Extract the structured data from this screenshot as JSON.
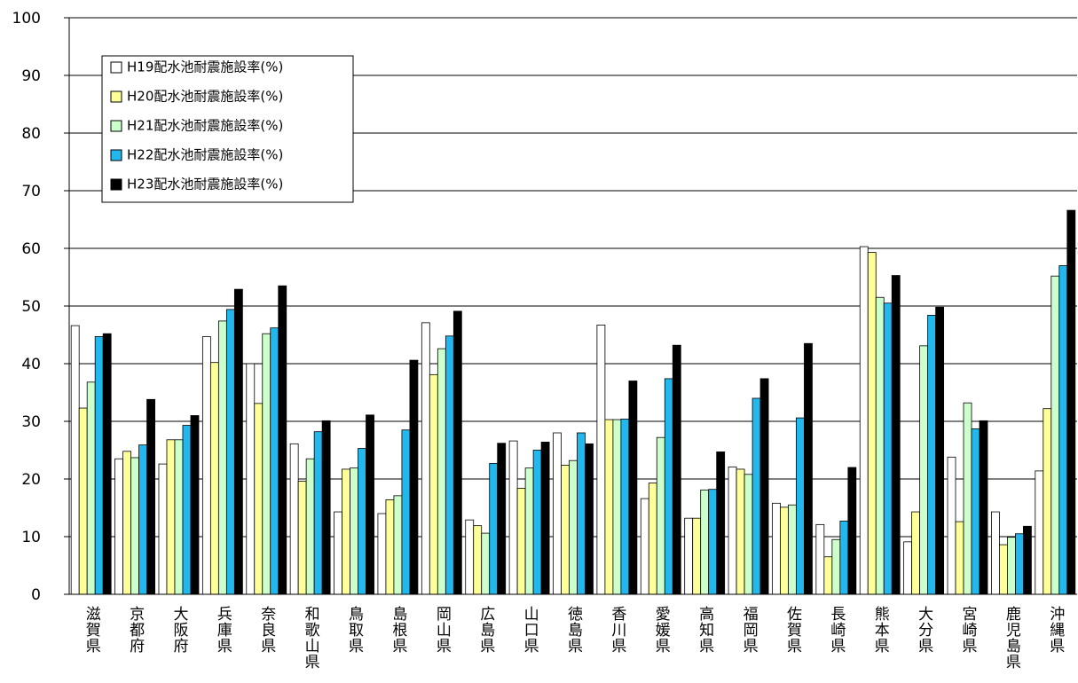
{
  "chart_data": {
    "type": "bar",
    "categories": [
      "滋賀県",
      "京都府",
      "大阪府",
      "兵庫県",
      "奈良県",
      "和歌山県",
      "鳥取県",
      "島根県",
      "岡山県",
      "広島県",
      "山口県",
      "徳島県",
      "香川県",
      "愛媛県",
      "高知県",
      "福岡県",
      "佐賀県",
      "長崎県",
      "熊本県",
      "大分県",
      "宮崎県",
      "鹿児島県",
      "沖縄県"
    ],
    "series": [
      {
        "name": "H19配水池耐震施設率(%)",
        "color": "#ffffff",
        "values": [
          46.6,
          23.5,
          22.6,
          44.7,
          40.0,
          26.1,
          14.3,
          14.0,
          47.1,
          12.9,
          26.6,
          28.0,
          46.7,
          16.6,
          13.2,
          22.1,
          15.8,
          12.1,
          60.3,
          9.1,
          23.8,
          14.3,
          21.4
        ]
      },
      {
        "name": "H20配水池耐震施設率(%)",
        "color": "#ffff99",
        "values": [
          32.3,
          24.8,
          26.8,
          40.2,
          33.1,
          19.6,
          21.7,
          16.4,
          38.1,
          11.9,
          18.4,
          22.4,
          30.3,
          19.3,
          13.2,
          21.7,
          15.1,
          6.5,
          59.3,
          14.3,
          12.6,
          8.6,
          32.2
        ]
      },
      {
        "name": "H21配水池耐震施設率(%)",
        "color": "#ccffcc",
        "values": [
          36.8,
          23.7,
          26.8,
          47.4,
          45.2,
          23.5,
          21.9,
          17.1,
          42.6,
          10.6,
          21.9,
          23.2,
          30.3,
          27.2,
          18.1,
          20.8,
          15.5,
          9.5,
          51.5,
          43.1,
          33.2,
          9.9,
          55.2
        ]
      },
      {
        "name": "H22配水池耐震施設率(%)",
        "color": "#22b8ee",
        "values": [
          44.7,
          25.9,
          29.3,
          49.4,
          46.2,
          28.2,
          25.3,
          28.5,
          44.8,
          22.7,
          25.0,
          28.0,
          30.4,
          37.4,
          18.2,
          34.0,
          30.6,
          12.7,
          50.5,
          48.4,
          28.7,
          10.5,
          57.0
        ]
      },
      {
        "name": "H23配水池耐震施設率(%)",
        "color": "#000000",
        "values": [
          45.2,
          33.8,
          31.0,
          52.9,
          53.5,
          30.1,
          31.1,
          40.6,
          49.1,
          26.2,
          26.4,
          26.1,
          37.0,
          43.2,
          24.7,
          37.4,
          43.5,
          22.0,
          55.3,
          49.8,
          30.1,
          11.8,
          66.6
        ]
      }
    ],
    "ylim": [
      0,
      100
    ],
    "yticks": [
      0,
      10,
      20,
      30,
      40,
      50,
      60,
      70,
      80,
      90,
      100
    ],
    "grid": true,
    "legend": "upper-left"
  }
}
